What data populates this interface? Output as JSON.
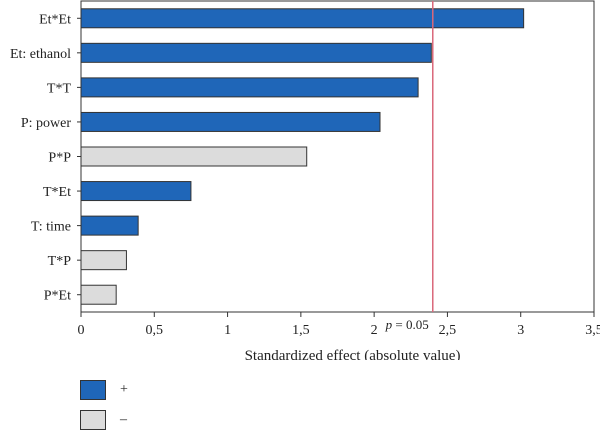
{
  "chart_data": {
    "type": "bar",
    "orientation": "horizontal",
    "categories": [
      "Et*Et",
      "Et: ethanol",
      "T*T",
      "P: power",
      "P*P",
      "T*Et",
      "T: time",
      "T*P",
      "P*Et"
    ],
    "values": [
      3.02,
      2.39,
      2.3,
      2.04,
      1.54,
      0.75,
      0.39,
      0.31,
      0.24
    ],
    "signs": [
      "+",
      "+",
      "+",
      "+",
      "-",
      "+",
      "+",
      "-",
      "-"
    ],
    "xlabel": "Standardized effect (absolute value)",
    "xlim": [
      0,
      3.5
    ],
    "xticks": [
      "0",
      "0,5",
      "1",
      "1,5",
      "2",
      "2,5",
      "3",
      "3,5"
    ],
    "xtick_values": [
      0,
      0.5,
      1,
      1.5,
      2,
      2.5,
      3,
      3.5
    ],
    "reference_line": {
      "value": 2.4,
      "label": "p = 0.05",
      "color": "#d9687a"
    },
    "colors": {
      "positive": "#1f66b8",
      "negative": "#dcdcdc",
      "border": "#333333"
    },
    "legend": [
      {
        "symbol": "+",
        "color": "#1f66b8"
      },
      {
        "symbol": "–",
        "color": "#dcdcdc"
      }
    ]
  }
}
